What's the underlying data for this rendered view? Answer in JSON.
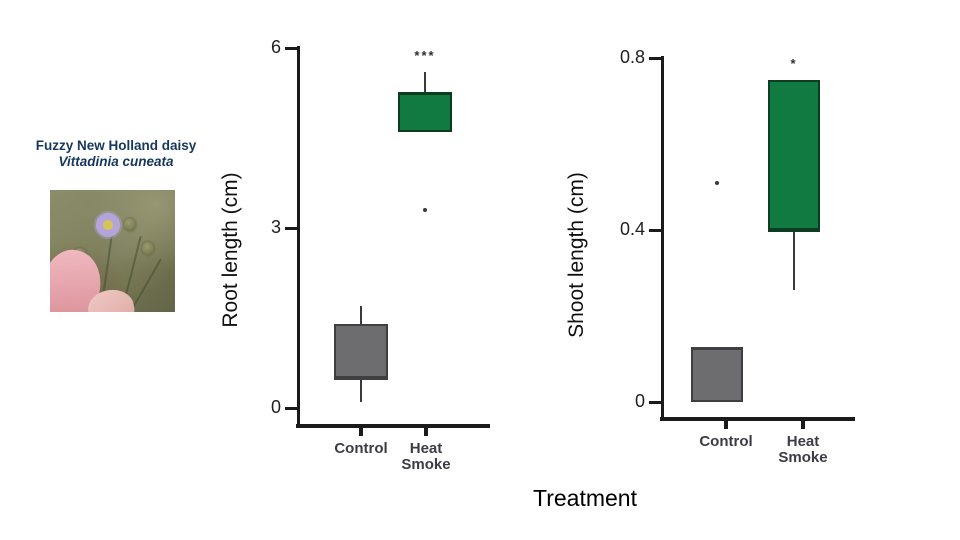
{
  "species_panel": {
    "common_name": "Fuzzy New Holland daisy",
    "scientific_name": "Vittadinia cuneata"
  },
  "treatment_label": "Treatment",
  "colors": {
    "title_navy": "#17375e",
    "axis": "#1b1b1b",
    "category_label": "#3c3c46",
    "control_fill": "#6d6d6f",
    "control_border": "#3f3f42",
    "heat_smoke_fill": "#117a40",
    "heat_smoke_border": "#0c3d22"
  },
  "chart_data": [
    {
      "type": "box",
      "title": "",
      "ylabel": "Root length (cm)",
      "xlabel": "Treatment",
      "ylim": [
        0,
        6
      ],
      "yticks": [
        0,
        3,
        6
      ],
      "grid": false,
      "categories": [
        "Control",
        "Heat Smoke"
      ],
      "series": [
        {
          "name": "Control",
          "color": "control",
          "q1": 0.5,
          "median": 0.5,
          "q3": 1.4,
          "whisker_low": 0.1,
          "whisker_high": 1.7,
          "outliers": [],
          "significance": ""
        },
        {
          "name": "Heat Smoke",
          "color": "heat_smoke",
          "q1": 4.6,
          "median": 5.25,
          "q3": 5.25,
          "whisker_low": null,
          "whisker_high": 5.6,
          "outliers": [
            3.3
          ],
          "significance": "***"
        }
      ]
    },
    {
      "type": "box",
      "title": "",
      "ylabel": "Shoot length (cm)",
      "xlabel": "Treatment",
      "ylim": [
        0,
        0.8
      ],
      "yticks": [
        0,
        0.4,
        0.8
      ],
      "grid": false,
      "categories": [
        "Control",
        "Heat Smoke"
      ],
      "series": [
        {
          "name": "Control",
          "color": "control",
          "q1": 0,
          "median": 0.125,
          "q3": 0.125,
          "whisker_low": null,
          "whisker_high": null,
          "outliers": [
            0.51
          ],
          "significance": ""
        },
        {
          "name": "Heat Smoke",
          "color": "heat_smoke",
          "q1": 0.4,
          "median": 0.4,
          "q3": 0.75,
          "whisker_low": 0.26,
          "whisker_high": null,
          "outliers": [],
          "significance": "*"
        }
      ]
    }
  ]
}
